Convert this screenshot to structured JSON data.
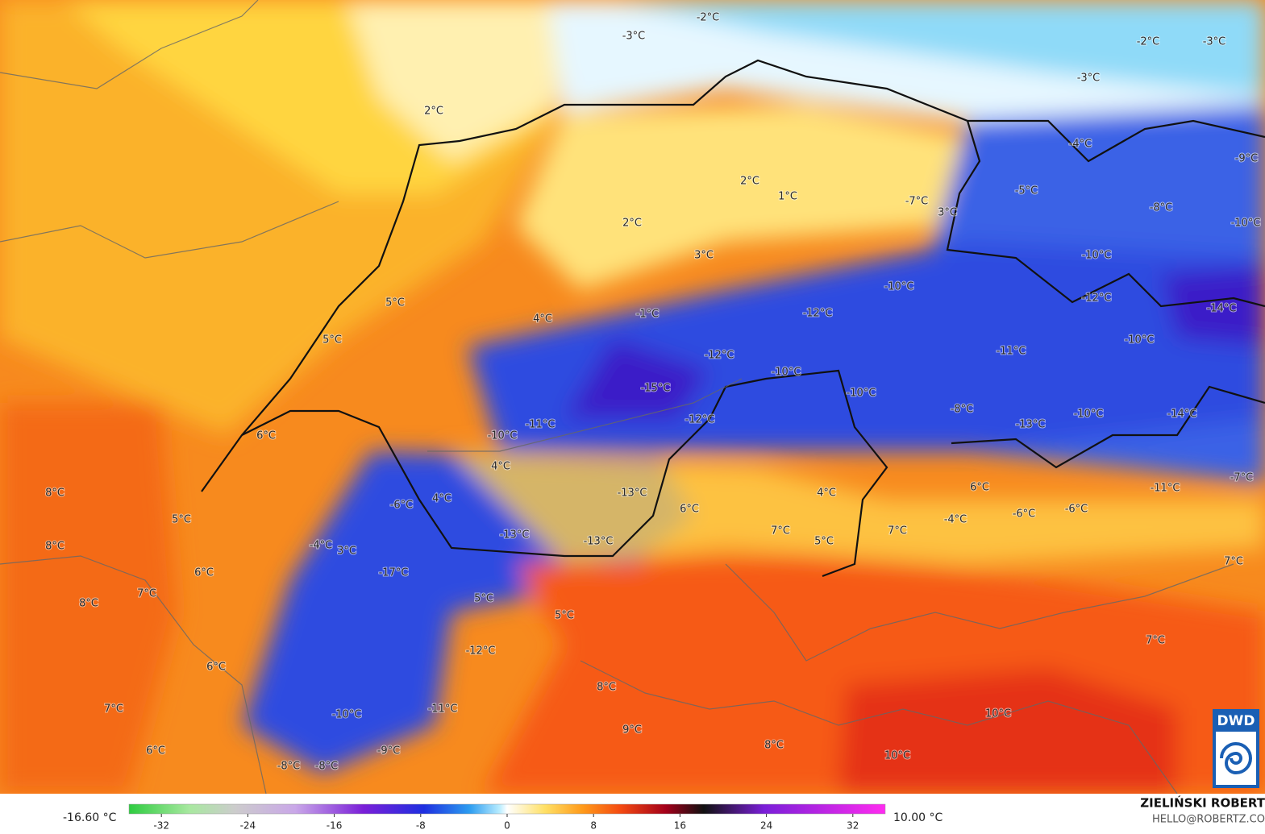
{
  "labels": [
    "-2°C",
    "-3°C",
    "-2°C",
    "-3°C",
    "-3°C",
    "2°C",
    "-4°C",
    "-9°C",
    "2°C",
    "1°C",
    "-7°C",
    "-5°C",
    "-8°C",
    "3°C",
    "-10°C",
    "2°C",
    "3°C",
    "-10°C",
    "-10°C",
    "-12°C",
    "5°C",
    "-1°C",
    "-12°C",
    "-14°C",
    "4°C",
    "5°C",
    "-10°C",
    "-11°C",
    "-12°C",
    "-10°C",
    "-15°C",
    "-10°C",
    "-8°C",
    "-12°C",
    "-13°C",
    "-10°C",
    "-14°C",
    "-11°C",
    "-10°C",
    "6°C",
    "4°C",
    "-7°C",
    "6°C",
    "-11°C",
    "8°C",
    "-13°C",
    "4°C",
    "4°C",
    "-6°C",
    "6°C",
    "-6°C",
    "-6°C",
    "5°C",
    "-4°C",
    "7°C",
    "7°C",
    "-13°C",
    "-13°C",
    "5°C",
    "8°C",
    "-4°C",
    "3°C",
    "7°C",
    "6°C",
    "-17°C",
    "7°C",
    "5°C",
    "8°C",
    "5°C",
    "7°C",
    "-12°C",
    "6°C",
    "8°C",
    "7°C",
    "-11°C",
    "-10°C",
    "10°C",
    "9°C",
    "6°C",
    "8°C",
    "-9°C",
    "10°C",
    "-8°C",
    "-8°C"
  ],
  "colorbar": {
    "min_label": "-16.60 °C",
    "max_label": "10.00 °C",
    "range": [
      -35,
      35
    ],
    "ticks": [
      -32,
      -24,
      -16,
      -8,
      0,
      8,
      16,
      24,
      32
    ]
  },
  "footer": {
    "author": "ZIELIŃSKI ROBERT",
    "email": "HELLO@ROBERTZ.CO"
  },
  "logo": "DWD"
}
